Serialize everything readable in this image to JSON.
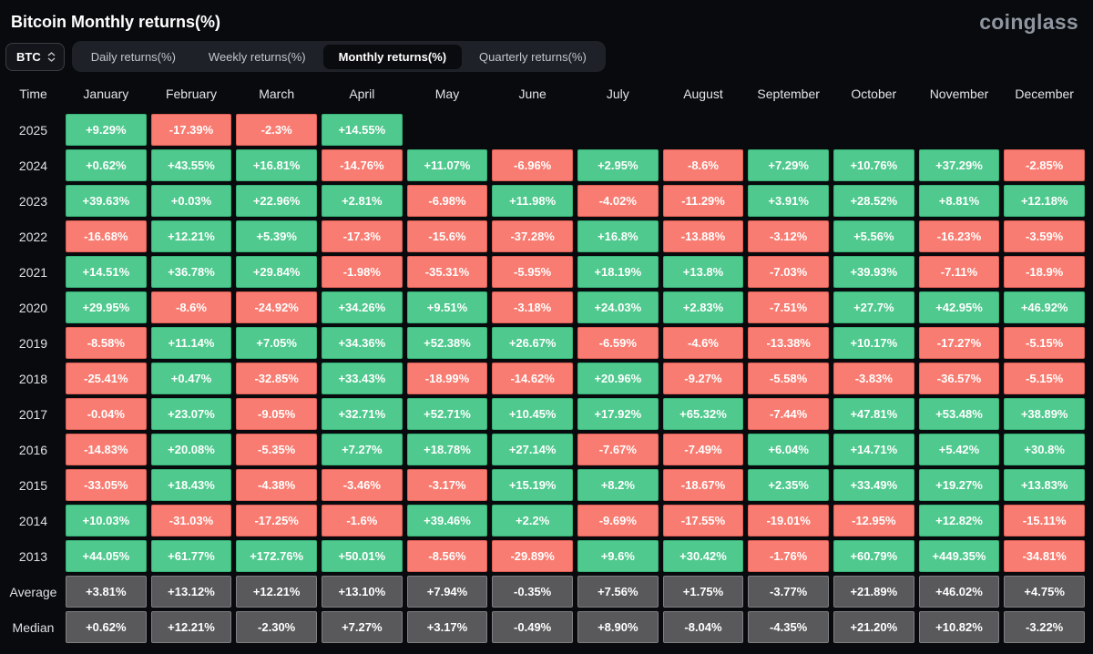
{
  "header": {
    "title": "Bitcoin Monthly returns(%)",
    "logo": "coinglass"
  },
  "controls": {
    "symbol": "BTC",
    "tabs": [
      {
        "label": "Daily returns(%)",
        "active": false
      },
      {
        "label": "Weekly returns(%)",
        "active": false
      },
      {
        "label": "Monthly returns(%)",
        "active": true
      },
      {
        "label": "Quarterly returns(%)",
        "active": false
      }
    ]
  },
  "colors": {
    "positive": "#4fc98e",
    "positive_border": "#36b276",
    "negative": "#f87c71",
    "negative_border": "#de5f56",
    "summary": "#59595b",
    "summary_border": "#7f7f82",
    "background": "#080a0d",
    "tab_bar": "#1e2127",
    "tab_active": "#0a0b0e"
  },
  "chart_data": {
    "type": "heatmap",
    "title": "Bitcoin Monthly returns(%)",
    "time_header": "Time",
    "columns": [
      "January",
      "February",
      "March",
      "April",
      "May",
      "June",
      "July",
      "August",
      "September",
      "October",
      "November",
      "December"
    ],
    "rows": [
      {
        "label": "2025",
        "summary": false,
        "values": [
          "+9.29%",
          "-17.39%",
          "-2.3%",
          "+14.55%",
          null,
          null,
          null,
          null,
          null,
          null,
          null,
          null
        ]
      },
      {
        "label": "2024",
        "summary": false,
        "values": [
          "+0.62%",
          "+43.55%",
          "+16.81%",
          "-14.76%",
          "+11.07%",
          "-6.96%",
          "+2.95%",
          "-8.6%",
          "+7.29%",
          "+10.76%",
          "+37.29%",
          "-2.85%"
        ]
      },
      {
        "label": "2023",
        "summary": false,
        "values": [
          "+39.63%",
          "+0.03%",
          "+22.96%",
          "+2.81%",
          "-6.98%",
          "+11.98%",
          "-4.02%",
          "-11.29%",
          "+3.91%",
          "+28.52%",
          "+8.81%",
          "+12.18%"
        ]
      },
      {
        "label": "2022",
        "summary": false,
        "values": [
          "-16.68%",
          "+12.21%",
          "+5.39%",
          "-17.3%",
          "-15.6%",
          "-37.28%",
          "+16.8%",
          "-13.88%",
          "-3.12%",
          "+5.56%",
          "-16.23%",
          "-3.59%"
        ]
      },
      {
        "label": "2021",
        "summary": false,
        "values": [
          "+14.51%",
          "+36.78%",
          "+29.84%",
          "-1.98%",
          "-35.31%",
          "-5.95%",
          "+18.19%",
          "+13.8%",
          "-7.03%",
          "+39.93%",
          "-7.11%",
          "-18.9%"
        ]
      },
      {
        "label": "2020",
        "summary": false,
        "values": [
          "+29.95%",
          "-8.6%",
          "-24.92%",
          "+34.26%",
          "+9.51%",
          "-3.18%",
          "+24.03%",
          "+2.83%",
          "-7.51%",
          "+27.7%",
          "+42.95%",
          "+46.92%"
        ]
      },
      {
        "label": "2019",
        "summary": false,
        "values": [
          "-8.58%",
          "+11.14%",
          "+7.05%",
          "+34.36%",
          "+52.38%",
          "+26.67%",
          "-6.59%",
          "-4.6%",
          "-13.38%",
          "+10.17%",
          "-17.27%",
          "-5.15%"
        ]
      },
      {
        "label": "2018",
        "summary": false,
        "values": [
          "-25.41%",
          "+0.47%",
          "-32.85%",
          "+33.43%",
          "-18.99%",
          "-14.62%",
          "+20.96%",
          "-9.27%",
          "-5.58%",
          "-3.83%",
          "-36.57%",
          "-5.15%"
        ]
      },
      {
        "label": "2017",
        "summary": false,
        "values": [
          "-0.04%",
          "+23.07%",
          "-9.05%",
          "+32.71%",
          "+52.71%",
          "+10.45%",
          "+17.92%",
          "+65.32%",
          "-7.44%",
          "+47.81%",
          "+53.48%",
          "+38.89%"
        ]
      },
      {
        "label": "2016",
        "summary": false,
        "values": [
          "-14.83%",
          "+20.08%",
          "-5.35%",
          "+7.27%",
          "+18.78%",
          "+27.14%",
          "-7.67%",
          "-7.49%",
          "+6.04%",
          "+14.71%",
          "+5.42%",
          "+30.8%"
        ]
      },
      {
        "label": "2015",
        "summary": false,
        "values": [
          "-33.05%",
          "+18.43%",
          "-4.38%",
          "-3.46%",
          "-3.17%",
          "+15.19%",
          "+8.2%",
          "-18.67%",
          "+2.35%",
          "+33.49%",
          "+19.27%",
          "+13.83%"
        ]
      },
      {
        "label": "2014",
        "summary": false,
        "values": [
          "+10.03%",
          "-31.03%",
          "-17.25%",
          "-1.6%",
          "+39.46%",
          "+2.2%",
          "-9.69%",
          "-17.55%",
          "-19.01%",
          "-12.95%",
          "+12.82%",
          "-15.11%"
        ]
      },
      {
        "label": "2013",
        "summary": false,
        "values": [
          "+44.05%",
          "+61.77%",
          "+172.76%",
          "+50.01%",
          "-8.56%",
          "-29.89%",
          "+9.6%",
          "+30.42%",
          "-1.76%",
          "+60.79%",
          "+449.35%",
          "-34.81%"
        ]
      },
      {
        "label": "Average",
        "summary": true,
        "values": [
          "+3.81%",
          "+13.12%",
          "+12.21%",
          "+13.10%",
          "+7.94%",
          "-0.35%",
          "+7.56%",
          "+1.75%",
          "-3.77%",
          "+21.89%",
          "+46.02%",
          "+4.75%"
        ]
      },
      {
        "label": "Median",
        "summary": true,
        "values": [
          "+0.62%",
          "+12.21%",
          "-2.30%",
          "+7.27%",
          "+3.17%",
          "-0.49%",
          "+8.90%",
          "-8.04%",
          "-4.35%",
          "+21.20%",
          "+10.82%",
          "-3.22%"
        ]
      }
    ]
  }
}
